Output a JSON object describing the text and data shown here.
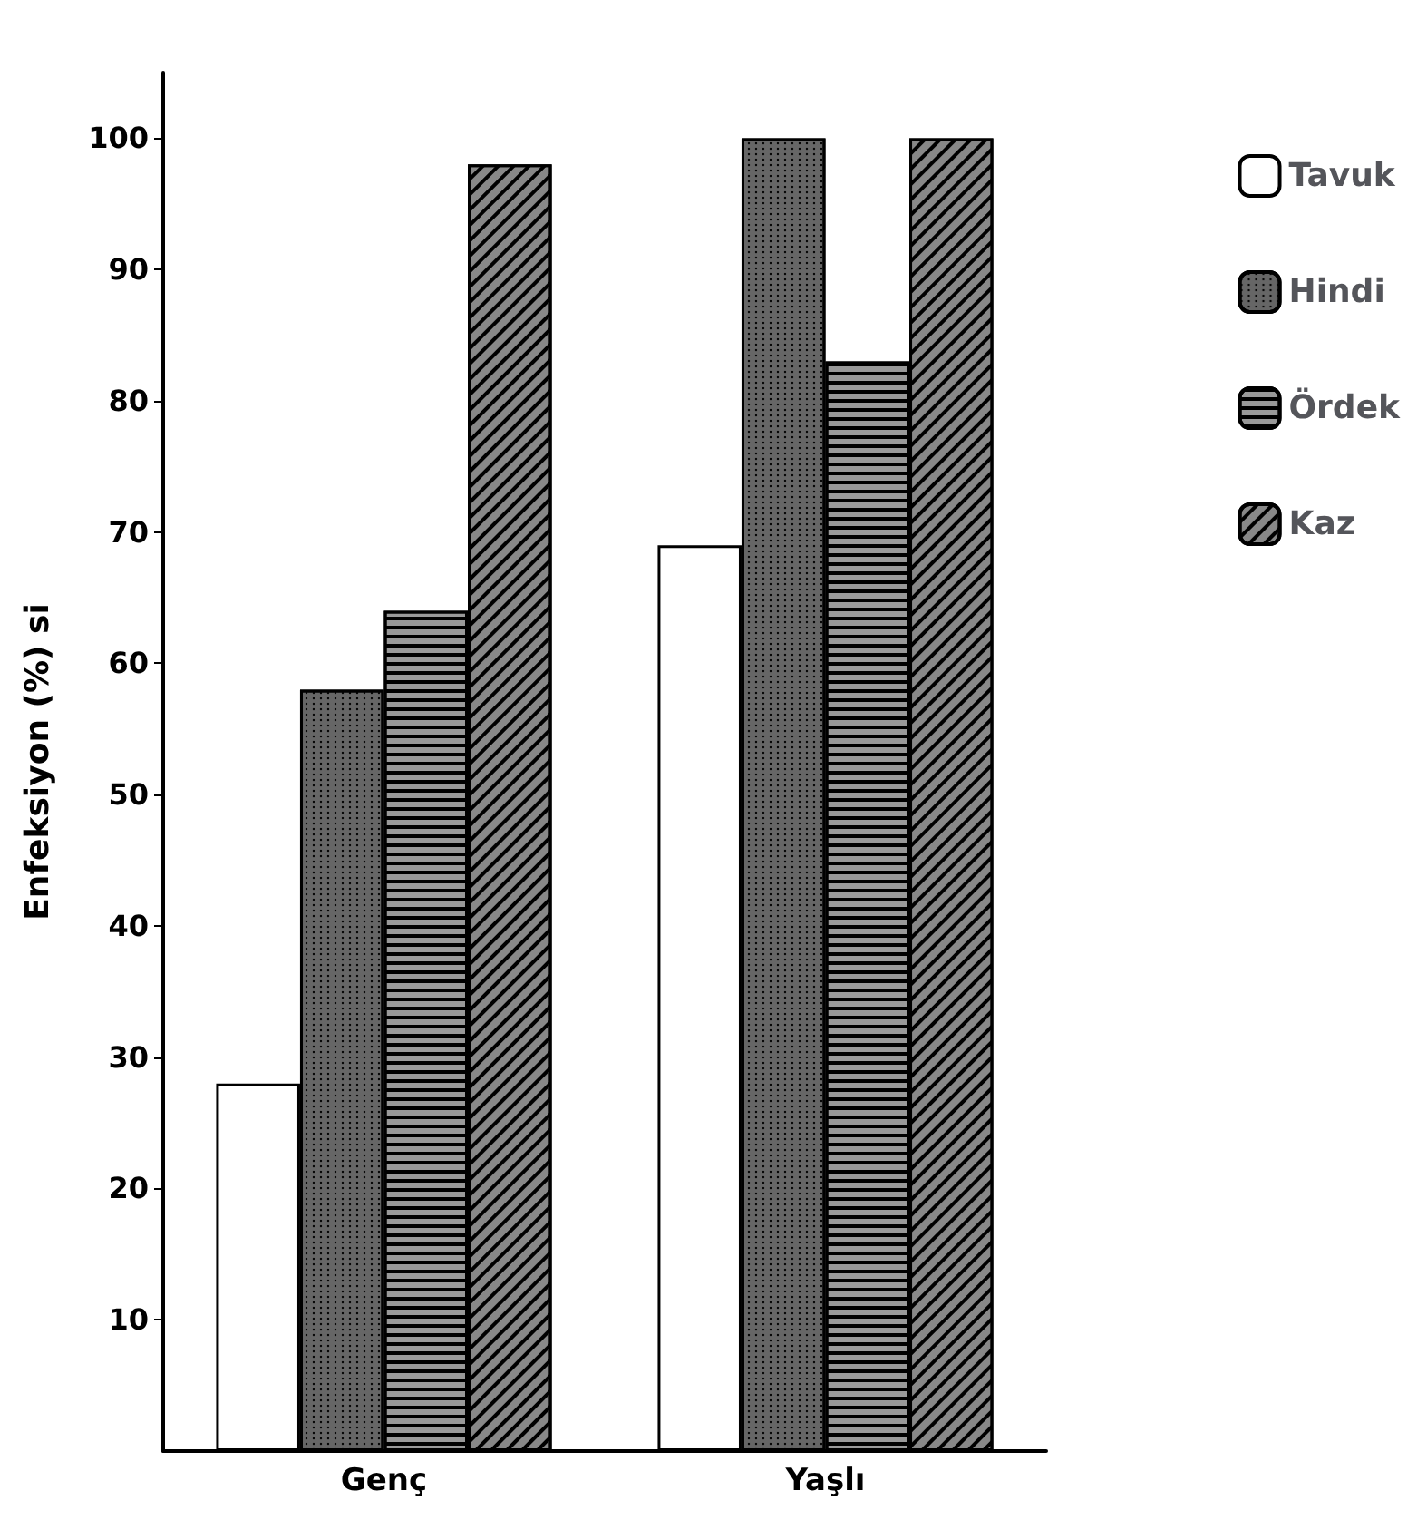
{
  "chart_data": {
    "type": "bar",
    "ylabel": "Enfeksiyon (%) si",
    "categories": [
      "Genç",
      "Yaşlı"
    ],
    "series": [
      {
        "name": "Tavuk",
        "color": "#ffffff",
        "values": [
          28,
          69
        ]
      },
      {
        "name": "Hindi",
        "color": "#666666",
        "values": [
          58,
          100
        ]
      },
      {
        "name": "Ördek",
        "color": "#999999",
        "values": [
          64,
          83
        ]
      },
      {
        "name": "Kaz",
        "color": "#888888",
        "values": [
          98,
          100
        ]
      }
    ],
    "ylim": [
      0,
      105
    ],
    "yticks": [
      10,
      20,
      30,
      40,
      50,
      60,
      70,
      80,
      90,
      100
    ],
    "grid": false,
    "legend": "top right"
  }
}
